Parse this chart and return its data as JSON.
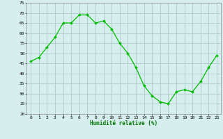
{
  "x": [
    0,
    1,
    2,
    3,
    4,
    5,
    6,
    7,
    8,
    9,
    10,
    11,
    12,
    13,
    14,
    15,
    16,
    17,
    18,
    19,
    20,
    21,
    22,
    23
  ],
  "y": [
    46,
    48,
    53,
    58,
    65,
    65,
    69,
    69,
    65,
    66,
    62,
    55,
    50,
    43,
    34,
    29,
    26,
    25,
    31,
    32,
    31,
    36,
    43,
    49
  ],
  "line_color": "#00bb00",
  "marker_color": "#00bb00",
  "bg_color": "#d6eeee",
  "grid_color": "#aacccc",
  "xlabel": "Humidité relative (%)",
  "xlabel_color": "#007700",
  "ylim": [
    20,
    75
  ],
  "xlim": [
    -0.5,
    23.5
  ],
  "yticks": [
    20,
    25,
    30,
    35,
    40,
    45,
    50,
    55,
    60,
    65,
    70,
    75
  ],
  "xticks": [
    0,
    1,
    2,
    3,
    4,
    5,
    6,
    7,
    8,
    9,
    10,
    11,
    12,
    13,
    14,
    15,
    16,
    17,
    18,
    19,
    20,
    21,
    22,
    23
  ]
}
